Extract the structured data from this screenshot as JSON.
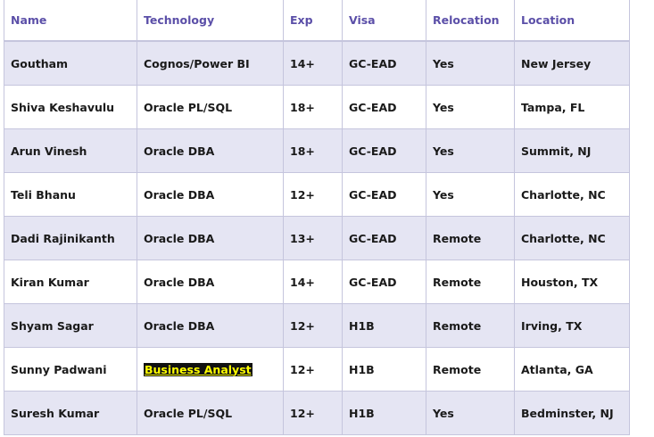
{
  "headers": [
    "Name",
    "Technology",
    "Exp",
    "Visa",
    "Relocation",
    "Location"
  ],
  "rows": [
    {
      "name": "Goutham",
      "technology": "Cognos/Power BI",
      "exp": "14+",
      "visa": "GC-EAD",
      "relocation": "Yes",
      "location": "New Jersey"
    },
    {
      "name": "Shiva Keshavulu",
      "technology": "Oracle PL/SQL",
      "exp": "18+",
      "visa": "GC-EAD",
      "relocation": "Yes",
      "location": "Tampa, FL"
    },
    {
      "name": "Arun Vinesh",
      "technology": "Oracle DBA",
      "exp": "18+",
      "visa": "GC-EAD",
      "relocation": "Yes",
      "location": "Summit, NJ"
    },
    {
      "name": "Teli Bhanu",
      "technology": "Oracle DBA",
      "exp": "12+",
      "visa": "GC-EAD",
      "relocation": "Yes",
      "location": "Charlotte, NC"
    },
    {
      "name": "Dadi Rajinikanth",
      "technology": "Oracle DBA",
      "exp": "13+",
      "visa": "GC-EAD",
      "relocation": "Remote",
      "location": "Charlotte, NC"
    },
    {
      "name": "Kiran Kumar",
      "technology": "Oracle DBA",
      "exp": "14+",
      "visa": "GC-EAD",
      "relocation": "Remote",
      "location": "Houston, TX"
    },
    {
      "name": "Shyam Sagar",
      "technology": "Oracle DBA",
      "exp": "12+",
      "visa": "H1B",
      "relocation": "Remote",
      "location": "Irving, TX"
    },
    {
      "name": "Sunny Padwani",
      "technology": "Business Analyst",
      "exp": "12+",
      "visa": "H1B",
      "relocation": "Remote",
      "location": "Atlanta, GA",
      "technology_highlighted": true
    },
    {
      "name": "Suresh Kumar",
      "technology": "Oracle PL/SQL",
      "exp": "12+",
      "visa": "H1B",
      "relocation": "Yes",
      "location": "Bedminster, NJ"
    }
  ],
  "colors": {
    "header_text": "#5b4fa8",
    "band": "#e5e5f3",
    "border": "#c5c5dd",
    "highlight_bg": "#111111",
    "highlight_text": "#ffff00"
  }
}
